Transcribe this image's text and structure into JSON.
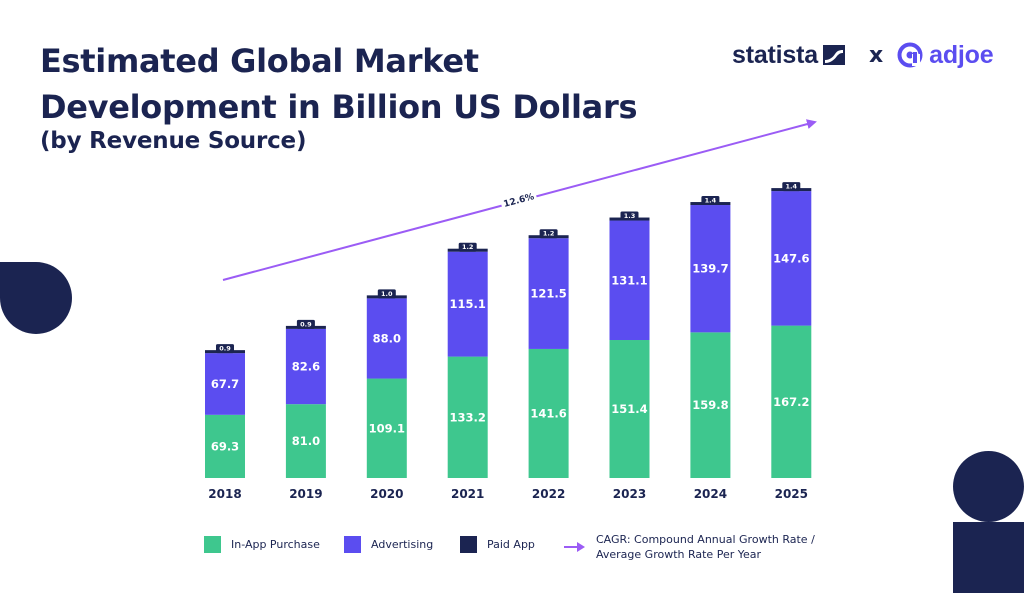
{
  "title_lines": [
    "Estimated Global Market",
    "Development in Billion US Dollars"
  ],
  "subtitle": "(by Revenue Source)",
  "brands": {
    "statista": "statista",
    "separator": "x",
    "adjoe": "adjoe"
  },
  "colors": {
    "in_app": "#3ec78e",
    "advertising": "#5b4df0",
    "paid": "#1b2451",
    "arrow": "#9b5cf5",
    "text_dark": "#1b2451"
  },
  "chart_data": {
    "type": "bar",
    "stacked": true,
    "categories": [
      "2018",
      "2019",
      "2020",
      "2021",
      "2022",
      "2023",
      "2024",
      "2025"
    ],
    "series": [
      {
        "name": "In-App Purchase",
        "values": [
          69.3,
          81.0,
          109.1,
          133.2,
          141.6,
          151.4,
          159.8,
          167.2
        ]
      },
      {
        "name": "Advertising",
        "values": [
          67.7,
          82.6,
          88.0,
          115.1,
          121.5,
          131.1,
          139.7,
          147.6
        ]
      },
      {
        "name": "Paid App",
        "values": [
          0.9,
          0.9,
          1.0,
          1.2,
          1.2,
          1.3,
          1.4,
          1.4
        ]
      }
    ],
    "value_labels": {
      "In-App Purchase": [
        "69.3",
        "81.0",
        "109.1",
        "133.2",
        "141.6",
        "151.4",
        "159.8",
        "167.2"
      ],
      "Advertising": [
        "67.7",
        "82.6",
        "88.0",
        "115.1",
        "121.5",
        "131.1",
        "139.7",
        "147.6"
      ],
      "Paid App": [
        "0.9",
        "0.9",
        "1.0",
        "1.2",
        "1.2",
        "1.3",
        "1.4",
        "1.4"
      ]
    },
    "cagr_label": "12.6%",
    "ylim": [
      0,
      316
    ]
  },
  "legend": {
    "in_app": "In-App Purchase",
    "advertising": "Advertising",
    "paid": "Paid App",
    "cagr_line1": "CAGR: Compound Annual Growth Rate /",
    "cagr_line2": "Average Growth Rate Per Year"
  }
}
